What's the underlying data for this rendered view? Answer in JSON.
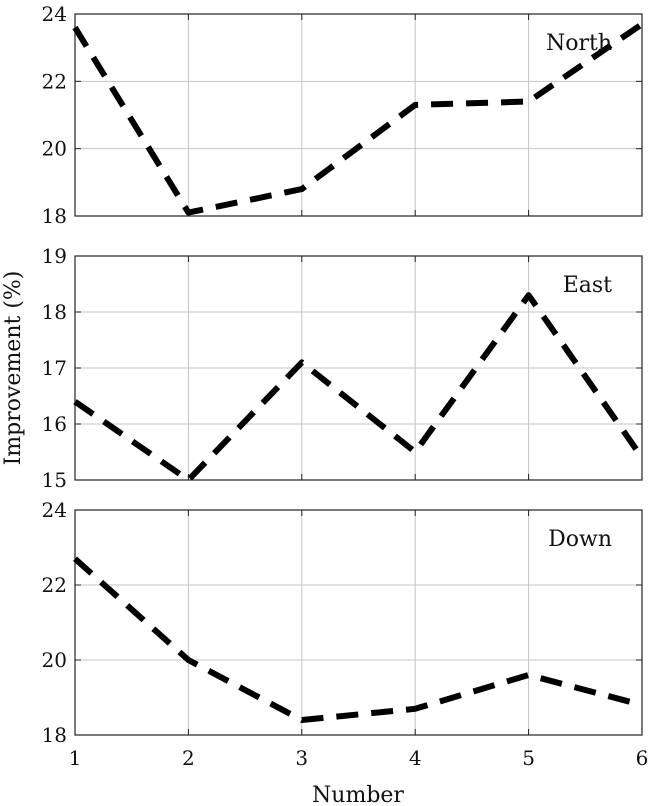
{
  "chart_data": [
    {
      "type": "line",
      "label": "North",
      "x": [
        1,
        2,
        3,
        4,
        5,
        6
      ],
      "values": [
        23.6,
        18.1,
        18.8,
        21.3,
        21.4,
        23.7
      ],
      "ylim": [
        18,
        24
      ],
      "yticks": [
        18,
        20,
        22,
        24
      ],
      "xlim": [
        1,
        6
      ],
      "xticks": [
        1,
        2,
        3,
        4,
        5,
        6
      ],
      "grid": true,
      "label_position": "top-right"
    },
    {
      "type": "line",
      "label": "East",
      "x": [
        1,
        2,
        3,
        4,
        5,
        6
      ],
      "values": [
        16.4,
        15.0,
        17.1,
        15.5,
        18.3,
        15.4
      ],
      "ylim": [
        15,
        19
      ],
      "yticks": [
        15,
        16,
        17,
        18,
        19
      ],
      "xlim": [
        1,
        6
      ],
      "xticks": [
        1,
        2,
        3,
        4,
        5,
        6
      ],
      "grid": true,
      "label_position": "top-right"
    },
    {
      "type": "line",
      "label": "Down",
      "x": [
        1,
        2,
        3,
        4,
        5,
        6
      ],
      "values": [
        22.7,
        20.0,
        18.4,
        18.7,
        19.6,
        18.8
      ],
      "ylim": [
        18,
        24
      ],
      "yticks": [
        18,
        20,
        22,
        24
      ],
      "xlim": [
        1,
        6
      ],
      "xticks": [
        1,
        2,
        3,
        4,
        5,
        6
      ],
      "grid": true,
      "label_position": "top-right"
    }
  ],
  "axes": {
    "xlabel": "Number",
    "ylabel": "Improvement (%)"
  },
  "colors": {
    "line": "#000000",
    "grid": "#c4c4c4",
    "frame": "#222222"
  }
}
